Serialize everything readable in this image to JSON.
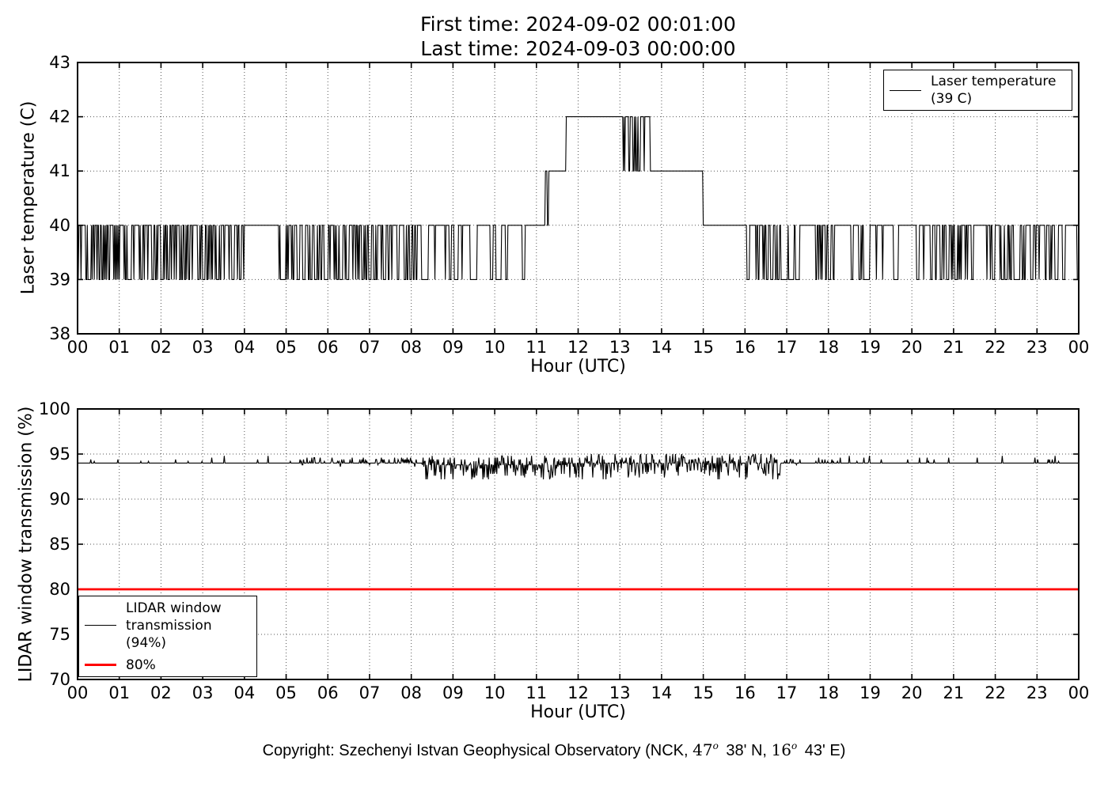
{
  "page": {
    "background": "#ffffff",
    "frame_color": "#000000",
    "grid_color": "#555555"
  },
  "header": {
    "title_line1": "First time: 2024-09-02 00:01:00",
    "title_line2": "Last time: 2024-09-03 00:00:00"
  },
  "footer": {
    "copyright_prefix": "Copyright: Szechenyi Istvan Geophysical Observatory (NCK, ",
    "lat_deg": "47",
    "deg_symbol": "o",
    "lat_rest": " 38' N, ",
    "lon_deg": "16",
    "lon_rest": " 43' E)"
  },
  "chart_data": [
    {
      "type": "line",
      "title": "",
      "xlabel": "Hour (UTC)",
      "ylabel": "Laser temperature (C)",
      "xlim": [
        0,
        24
      ],
      "ylim": [
        38,
        43
      ],
      "xticks": [
        0,
        1,
        2,
        3,
        4,
        5,
        6,
        7,
        8,
        9,
        10,
        11,
        12,
        13,
        14,
        15,
        16,
        17,
        18,
        19,
        20,
        21,
        22,
        23,
        24
      ],
      "xtick_labels": [
        "00",
        "01",
        "02",
        "03",
        "04",
        "05",
        "06",
        "07",
        "08",
        "09",
        "10",
        "11",
        "12",
        "13",
        "14",
        "15",
        "16",
        "17",
        "18",
        "19",
        "20",
        "21",
        "22",
        "23",
        "00"
      ],
      "yticks": [
        38,
        39,
        40,
        41,
        42,
        43
      ],
      "grid": true,
      "line_color": "#000000",
      "legend": {
        "position": "upper right",
        "lines": [
          "Laser temperature",
          "(39 C)"
        ]
      },
      "series_generator": {
        "kind": "telegraph",
        "seed": 1337,
        "start_minute": 1,
        "end_minute": 1440,
        "segments": [
          {
            "from": 0,
            "to": 4.0,
            "mode": "toggle",
            "lo": 39,
            "hi": 40,
            "p": 0.45,
            "bias": 0.5
          },
          {
            "from": 4.0,
            "to": 4.72,
            "mode": "const",
            "v": 40
          },
          {
            "from": 4.72,
            "to": 7.9,
            "mode": "toggle",
            "lo": 39,
            "hi": 40,
            "p": 0.4,
            "bias": 0.5
          },
          {
            "from": 7.9,
            "to": 9.7,
            "mode": "toggle",
            "lo": 39,
            "hi": 40,
            "p": 0.18,
            "bias": 0.7
          },
          {
            "from": 9.7,
            "to": 10.72,
            "mode": "toggle",
            "lo": 39,
            "hi": 40,
            "p": 0.1,
            "bias": 0.75
          },
          {
            "from": 10.72,
            "to": 11.18,
            "mode": "const",
            "v": 40
          },
          {
            "from": 11.18,
            "to": 11.3,
            "mode": "toggle",
            "lo": 40,
            "hi": 41,
            "p": 0.3,
            "bias": 0.8
          },
          {
            "from": 11.3,
            "to": 11.62,
            "mode": "const",
            "v": 41
          },
          {
            "from": 11.62,
            "to": 11.72,
            "mode": "toggle",
            "lo": 41,
            "hi": 42,
            "p": 0.3,
            "bias": 0.8
          },
          {
            "from": 11.72,
            "to": 13.05,
            "mode": "const",
            "v": 42
          },
          {
            "from": 13.05,
            "to": 13.72,
            "mode": "toggle",
            "lo": 41,
            "hi": 42,
            "p": 0.35,
            "bias": 0.55
          },
          {
            "from": 13.72,
            "to": 14.95,
            "mode": "const",
            "v": 41
          },
          {
            "from": 14.95,
            "to": 15.1,
            "mode": "toggle",
            "lo": 40,
            "hi": 41,
            "p": 0.4,
            "bias": 0.3
          },
          {
            "from": 15.1,
            "to": 15.88,
            "mode": "const",
            "v": 40
          },
          {
            "from": 15.88,
            "to": 19.35,
            "mode": "toggle",
            "lo": 39,
            "hi": 40,
            "p": 0.32,
            "bias": 0.6
          },
          {
            "from": 19.35,
            "to": 20.2,
            "mode": "toggle",
            "lo": 39,
            "hi": 40,
            "p": 0.12,
            "bias": 0.78
          },
          {
            "from": 20.2,
            "to": 24.0,
            "mode": "toggle",
            "lo": 39,
            "hi": 40,
            "p": 0.3,
            "bias": 0.6
          }
        ]
      }
    },
    {
      "type": "line",
      "title": "",
      "xlabel": "Hour (UTC)",
      "ylabel": "LIDAR window transmission (%)",
      "xlim": [
        0,
        24
      ],
      "ylim": [
        70,
        100
      ],
      "xticks": [
        0,
        1,
        2,
        3,
        4,
        5,
        6,
        7,
        8,
        9,
        10,
        11,
        12,
        13,
        14,
        15,
        16,
        17,
        18,
        19,
        20,
        21,
        22,
        23,
        24
      ],
      "xtick_labels": [
        "00",
        "01",
        "02",
        "03",
        "04",
        "05",
        "06",
        "07",
        "08",
        "09",
        "10",
        "11",
        "12",
        "13",
        "14",
        "15",
        "16",
        "17",
        "18",
        "19",
        "20",
        "21",
        "22",
        "23",
        "00"
      ],
      "yticks": [
        70,
        75,
        80,
        85,
        90,
        95,
        100
      ],
      "grid": true,
      "line_color": "#000000",
      "refline": {
        "value": 80,
        "color": "#ff0000",
        "label": "80%"
      },
      "legend": {
        "position": "lower left",
        "entries": [
          {
            "lines": [
              "LIDAR window",
              "transmission",
              "(94%)"
            ],
            "color": "#000000",
            "thick": false
          },
          {
            "lines": [
              "80%"
            ],
            "color": "#ff0000",
            "thick": true
          }
        ]
      },
      "series_generator": {
        "kind": "noise",
        "seed": 2024,
        "start_minute": 1,
        "end_minute": 1440,
        "quantize": 0.2,
        "segments": [
          {
            "from": 0,
            "to": 5.3,
            "base": 94,
            "p_up": 0.05,
            "up": 0.8,
            "p_dn": 0.004,
            "dn": 0.6
          },
          {
            "from": 5.3,
            "to": 8.25,
            "base": 94,
            "p_up": 0.3,
            "up": 0.7,
            "p_dn": 0.06,
            "dn": 0.4
          },
          {
            "from": 8.25,
            "to": 11.7,
            "base": 93.8,
            "p_up": 0.3,
            "up": 1.0,
            "p_dn": 0.35,
            "dn": 1.7
          },
          {
            "from": 11.7,
            "to": 16.9,
            "base": 94,
            "p_up": 0.35,
            "up": 1.1,
            "p_dn": 0.3,
            "dn": 1.9
          },
          {
            "from": 16.9,
            "to": 18.3,
            "base": 94,
            "p_up": 0.18,
            "up": 0.7,
            "p_dn": 0.02,
            "dn": 0.3
          },
          {
            "from": 18.3,
            "to": 24.0,
            "base": 94,
            "p_up": 0.06,
            "up": 0.8,
            "p_dn": 0.002,
            "dn": 0.3
          }
        ]
      }
    }
  ]
}
